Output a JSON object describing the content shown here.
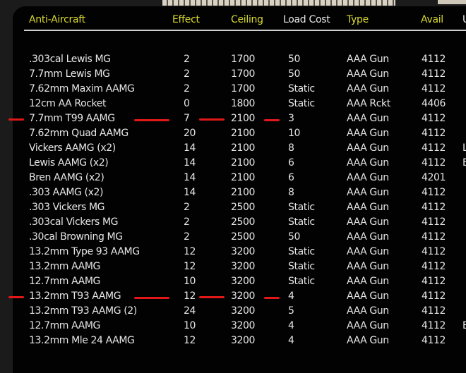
{
  "header": {
    "name": "Anti-Aircraft",
    "effect": "Effect",
    "ceiling": "Ceiling",
    "load_cost": "Load Cost",
    "type": "Type",
    "avail": "Avail",
    "extra": "U"
  },
  "colors": {
    "header_yellow": "#d8d830",
    "text": "#e6e6e6",
    "highlight_mark": "#e01818"
  },
  "rows": [
    {
      "name": ".303cal Lewis MG",
      "effect": "2",
      "ceiling": "1700",
      "load": "50",
      "type": "AAA Gun",
      "avail": "4112",
      "extra": ""
    },
    {
      "name": "7.7mm Lewis MG",
      "effect": "2",
      "ceiling": "1700",
      "load": "50",
      "type": "AAA Gun",
      "avail": "4112",
      "extra": ""
    },
    {
      "name": "7.62mm Maxim AAMG",
      "effect": "2",
      "ceiling": "1700",
      "load": "Static",
      "type": "AAA Gun",
      "avail": "4112",
      "extra": ""
    },
    {
      "name": "12cm AA Rocket",
      "effect": "0",
      "ceiling": "1800",
      "load": "Static",
      "type": "AAA Rckt",
      "avail": "4406",
      "extra": ""
    },
    {
      "name": "7.7mm T99 AAMG",
      "effect": "7",
      "ceiling": "2100",
      "load": "3",
      "type": "AAA Gun",
      "avail": "4112",
      "extra": "",
      "marked": true
    },
    {
      "name": "7.62mm Quad AAMG",
      "effect": "20",
      "ceiling": "2100",
      "load": "10",
      "type": "AAA Gun",
      "avail": "4112",
      "extra": ""
    },
    {
      "name": "Vickers AAMG (x2)",
      "effect": "14",
      "ceiling": "2100",
      "load": "8",
      "type": "AAA Gun",
      "avail": "4112",
      "extra": "L"
    },
    {
      "name": "Lewis AAMG (x2)",
      "effect": "14",
      "ceiling": "2100",
      "load": "6",
      "type": "AAA Gun",
      "avail": "4112",
      "extra": "E"
    },
    {
      "name": "Bren AAMG (x2)",
      "effect": "14",
      "ceiling": "2100",
      "load": "6",
      "type": "AAA Gun",
      "avail": "4201",
      "extra": ""
    },
    {
      "name": ".303 AAMG (x2)",
      "effect": "14",
      "ceiling": "2100",
      "load": "8",
      "type": "AAA Gun",
      "avail": "4112",
      "extra": ""
    },
    {
      "name": ".303 Vickers  MG",
      "effect": "2",
      "ceiling": "2500",
      "load": "Static",
      "type": "AAA Gun",
      "avail": "4112",
      "extra": ""
    },
    {
      "name": ".303cal Vickers MG",
      "effect": "2",
      "ceiling": "2500",
      "load": "Static",
      "type": "AAA Gun",
      "avail": "4112",
      "extra": ""
    },
    {
      "name": ".30cal Browning MG",
      "effect": "2",
      "ceiling": "2500",
      "load": "50",
      "type": "AAA Gun",
      "avail": "4112",
      "extra": ""
    },
    {
      "name": "13.2mm Type 93 AAMG",
      "effect": "12",
      "ceiling": "3200",
      "load": "Static",
      "type": "AAA Gun",
      "avail": "4112",
      "extra": ""
    },
    {
      "name": "13.2mm AAMG",
      "effect": "12",
      "ceiling": "3200",
      "load": "Static",
      "type": "AAA Gun",
      "avail": "4112",
      "extra": ""
    },
    {
      "name": "12.7mm AAMG",
      "effect": "10",
      "ceiling": "3200",
      "load": "Static",
      "type": "AAA Gun",
      "avail": "4112",
      "extra": ""
    },
    {
      "name": "13.2mm T93 AAMG",
      "effect": "12",
      "ceiling": "3200",
      "load": "4",
      "type": "AAA Gun",
      "avail": "4112",
      "extra": "",
      "marked": true
    },
    {
      "name": "13.2mm T93 AAMG (2)",
      "effect": "24",
      "ceiling": "3200",
      "load": "5",
      "type": "AAA Gun",
      "avail": "4112",
      "extra": ""
    },
    {
      "name": "12.7mm AAMG",
      "effect": "10",
      "ceiling": "3200",
      "load": "4",
      "type": "AAA Gun",
      "avail": "4112",
      "extra": "E"
    },
    {
      "name": "13.2mm Mle 24 AAMG",
      "effect": "12",
      "ceiling": "3200",
      "load": "4",
      "type": "AAA Gun",
      "avail": "4112",
      "extra": ""
    }
  ]
}
